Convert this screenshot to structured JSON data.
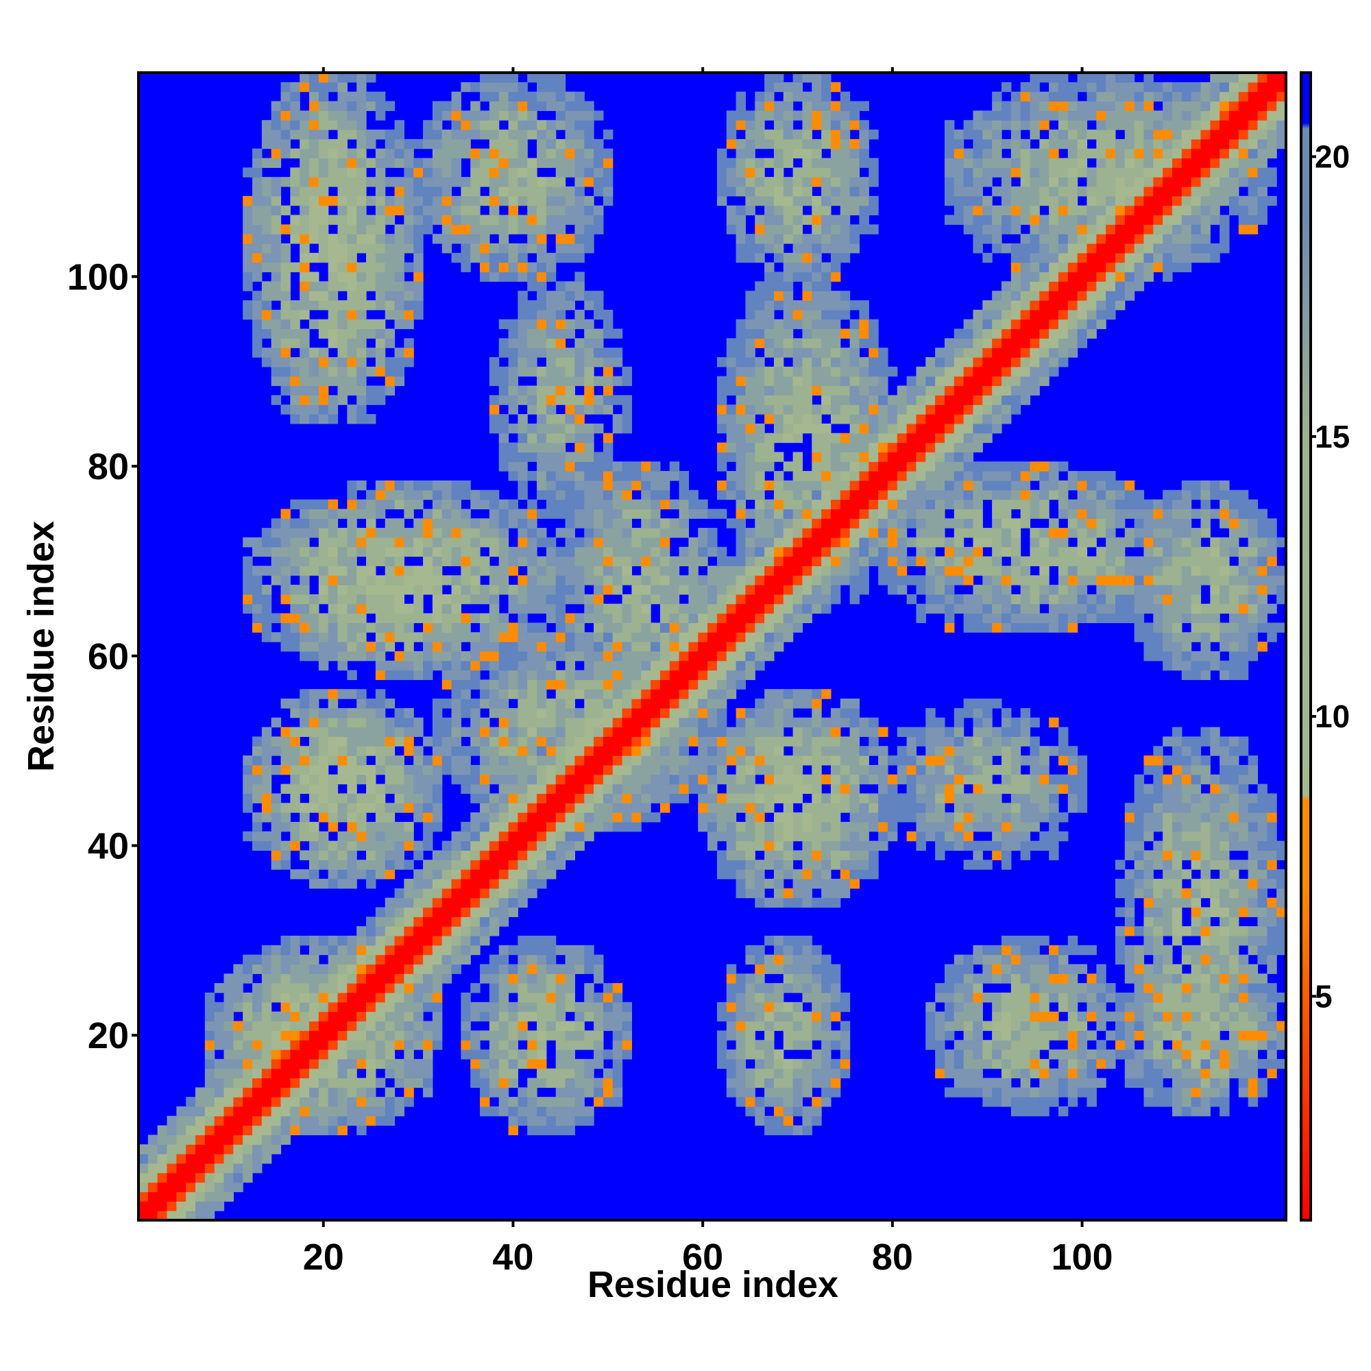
{
  "chart_data": {
    "type": "heatmap",
    "title": "",
    "xlabel": "Residue index",
    "ylabel": "Residue index",
    "n_residues": 121,
    "xlim": [
      0.5,
      121.5
    ],
    "ylim": [
      0.5,
      121.5
    ],
    "x_ticks": [
      20,
      40,
      60,
      80,
      100
    ],
    "y_ticks": [
      20,
      40,
      60,
      80,
      100
    ],
    "colorbar": {
      "ticks": [
        5,
        10,
        15,
        20
      ],
      "range": [
        1,
        21.5
      ],
      "colors": [
        "#ff0000",
        "#ff8c00",
        "#a6b890",
        "#9fb18f",
        "#6d8ab0",
        "#0000ff"
      ]
    },
    "background_color": "#0000ff",
    "diagonal_color": "#ff0000",
    "contact_regions": [
      {
        "x": [
          12,
          30
        ],
        "y": [
          85,
          121
        ],
        "value": 12
      },
      {
        "x": [
          30,
          50
        ],
        "y": [
          100,
          121
        ],
        "value": 13
      },
      {
        "x": [
          38,
          52
        ],
        "y": [
          75,
          100
        ],
        "value": 14
      },
      {
        "x": [
          62,
          78
        ],
        "y": [
          100,
          121
        ],
        "value": 13
      },
      {
        "x": [
          62,
          80
        ],
        "y": [
          65,
          100
        ],
        "value": 13
      },
      {
        "x": [
          86,
          120
        ],
        "y": [
          100,
          121
        ],
        "value": 13
      },
      {
        "x": [
          12,
          45
        ],
        "y": [
          58,
          78
        ],
        "value": 12
      },
      {
        "x": [
          45,
          62
        ],
        "y": [
          55,
          80
        ],
        "value": 13
      },
      {
        "x": [
          78,
          110
        ],
        "y": [
          63,
          80
        ],
        "value": 13
      },
      {
        "x": [
          105,
          121
        ],
        "y": [
          58,
          78
        ],
        "value": 13
      },
      {
        "x": [
          12,
          32
        ],
        "y": [
          36,
          56
        ],
        "value": 12
      },
      {
        "x": [
          32,
          62
        ],
        "y": [
          42,
          62
        ],
        "value": 13
      },
      {
        "x": [
          60,
          80
        ],
        "y": [
          34,
          56
        ],
        "value": 12
      },
      {
        "x": [
          80,
          100
        ],
        "y": [
          38,
          55
        ],
        "value": 14
      },
      {
        "x": [
          104,
          121
        ],
        "y": [
          14,
          52
        ],
        "value": 13
      },
      {
        "x": [
          8,
          32
        ],
        "y": [
          10,
          30
        ],
        "value": 12
      },
      {
        "x": [
          35,
          52
        ],
        "y": [
          10,
          30
        ],
        "value": 13
      },
      {
        "x": [
          62,
          75
        ],
        "y": [
          10,
          30
        ],
        "value": 13
      },
      {
        "x": [
          84,
          104
        ],
        "y": [
          12,
          30
        ],
        "value": 13
      },
      {
        "x": [
          104,
          121
        ],
        "y": [
          12,
          28
        ],
        "value": 13
      }
    ]
  }
}
